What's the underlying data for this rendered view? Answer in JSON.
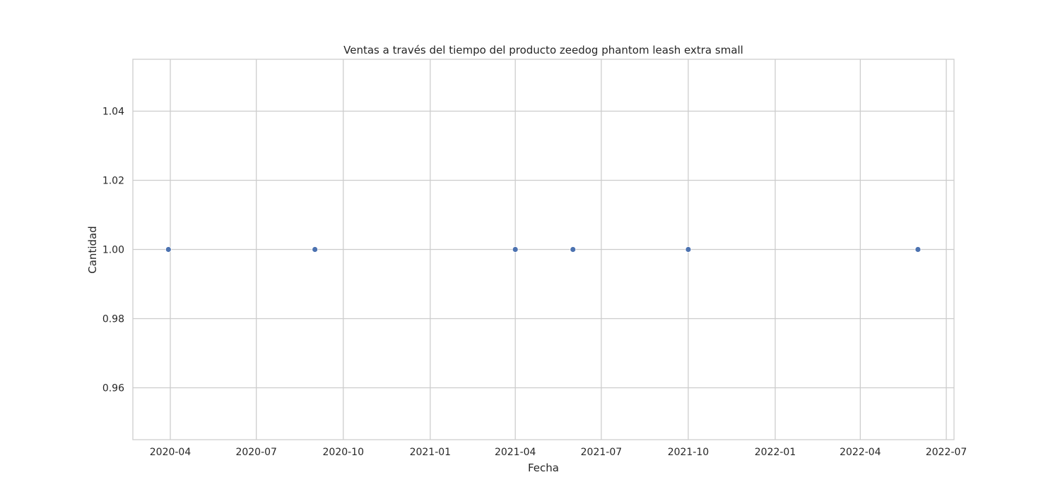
{
  "chart_data": {
    "type": "scatter",
    "title": "Ventas a través del tiempo del producto zeedog phantom leash extra small",
    "xlabel": "Fecha",
    "ylabel": "Cantidad",
    "x_ticks": [
      "2020-04",
      "2020-07",
      "2020-10",
      "2021-01",
      "2021-04",
      "2021-07",
      "2021-10",
      "2022-01",
      "2022-04",
      "2022-07"
    ],
    "y_ticks": [
      "0.96",
      "0.98",
      "1.00",
      "1.02",
      "1.04"
    ],
    "ylim": [
      0.945,
      1.055
    ],
    "grid": true,
    "marker_color": "#4c72b0",
    "series": [
      {
        "points": [
          {
            "x": "2020-03-30",
            "y": 1
          },
          {
            "x": "2020-09-01",
            "y": 1
          },
          {
            "x": "2021-04-01",
            "y": 1
          },
          {
            "x": "2021-06-01",
            "y": 1
          },
          {
            "x": "2021-10-01",
            "y": 1
          },
          {
            "x": "2022-06-01",
            "y": 1
          }
        ]
      }
    ]
  }
}
